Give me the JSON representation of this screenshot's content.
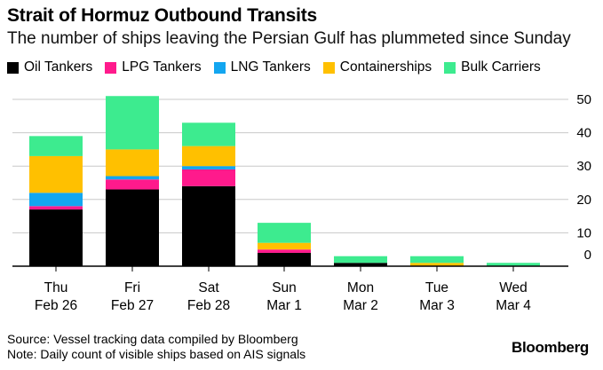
{
  "header": {
    "title": "Strait of Hormuz Outbound Transits",
    "subtitle": "The number of ships leaving the Persian Gulf has plummeted since Sunday"
  },
  "footer": {
    "source": "Source: Vessel tracking data compiled by Bloomberg",
    "note": "Note: Daily count of visible ships based on AIS signals",
    "brand": "Bloomberg"
  },
  "chart_data": {
    "type": "bar",
    "stacked": true,
    "title": "Strait of Hormuz Outbound Transits",
    "subtitle": "The number of ships leaving the Persian Gulf has plummeted since Sunday",
    "xlabel": "",
    "ylabel": "",
    "ylim": [
      0,
      50
    ],
    "yticks": [
      0,
      10,
      20,
      30,
      40,
      50
    ],
    "grid": true,
    "legend_position": "top-left",
    "categories": [
      [
        "Thu",
        "Feb 26"
      ],
      [
        "Fri",
        "Feb 27"
      ],
      [
        "Sat",
        "Feb 28"
      ],
      [
        "Sun",
        "Mar 1"
      ],
      [
        "Mon",
        "Mar 2"
      ],
      [
        "Tue",
        "Mar 3"
      ],
      [
        "Wed",
        "Mar 4"
      ]
    ],
    "series": [
      {
        "name": "Oil Tankers",
        "color": "#000000",
        "values": [
          17,
          23,
          24,
          4,
          1,
          0,
          0
        ]
      },
      {
        "name": "LPG Tankers",
        "color": "#ff1a8c",
        "values": [
          1,
          3,
          5,
          1,
          0,
          0,
          0
        ]
      },
      {
        "name": "LNG Tankers",
        "color": "#13a6f0",
        "values": [
          4,
          1,
          1,
          0,
          0,
          0,
          0
        ]
      },
      {
        "name": "Containerships",
        "color": "#ffc000",
        "values": [
          11,
          8,
          6,
          2,
          0,
          1,
          0
        ]
      },
      {
        "name": "Bulk Carriers",
        "color": "#3deb8f",
        "values": [
          6,
          16,
          7,
          6,
          2,
          2,
          1
        ]
      }
    ]
  }
}
